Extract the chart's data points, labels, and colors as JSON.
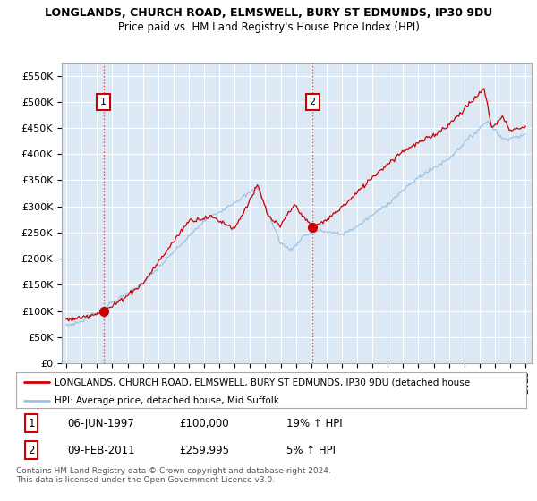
{
  "title1": "LONGLANDS, CHURCH ROAD, ELMSWELL, BURY ST EDMUNDS, IP30 9DU",
  "title2": "Price paid vs. HM Land Registry's House Price Index (HPI)",
  "bg_color": "#dce9f5",
  "line1_color": "#cc0000",
  "line2_color": "#99c4e8",
  "ytick_labels": [
    "£0",
    "£50K",
    "£100K",
    "£150K",
    "£200K",
    "£250K",
    "£300K",
    "£350K",
    "£400K",
    "£450K",
    "£500K",
    "£550K"
  ],
  "legend1_text": "LONGLANDS, CHURCH ROAD, ELMSWELL, BURY ST EDMUNDS, IP30 9DU (detached house",
  "legend2_text": "HPI: Average price, detached house, Mid Suffolk",
  "footnote": "Contains HM Land Registry data © Crown copyright and database right 2024.\nThis data is licensed under the Open Government Licence v3.0.",
  "box1_date": "06-JUN-1997",
  "box1_price": "£100,000",
  "box1_hpi": "19% ↑ HPI",
  "box2_date": "09-FEB-2011",
  "box2_price": "£259,995",
  "box2_hpi": "5% ↑ HPI",
  "sale1_yr": 1997.42,
  "sale1_price": 100000,
  "sale2_yr": 2011.08,
  "sale2_price": 259995
}
